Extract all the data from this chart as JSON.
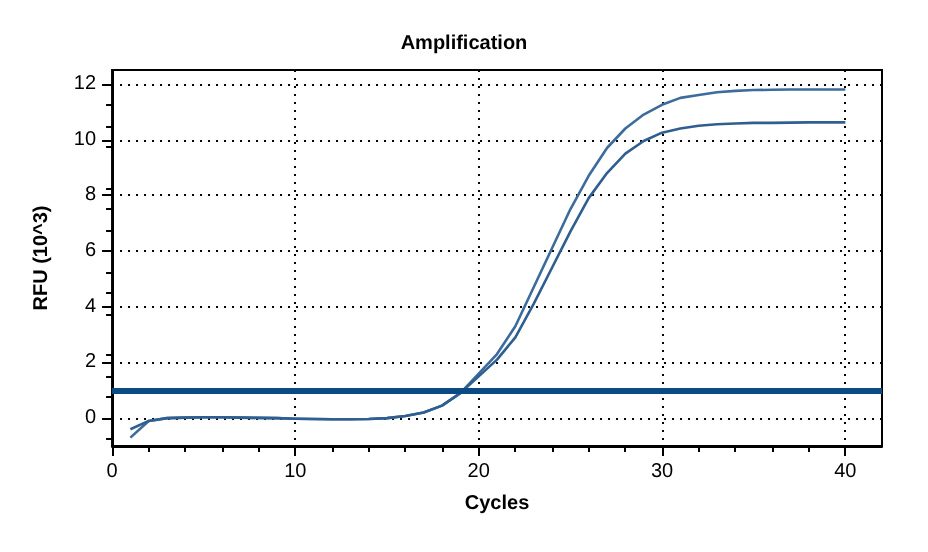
{
  "chart_data": {
    "type": "line",
    "title": "Amplification",
    "xlabel": "Cycles",
    "ylabel": "RFU (10^3)",
    "x": [
      1,
      2,
      3,
      4,
      5,
      6,
      7,
      8,
      9,
      10,
      11,
      12,
      13,
      14,
      15,
      16,
      17,
      18,
      19,
      20,
      21,
      22,
      23,
      24,
      25,
      26,
      27,
      28,
      29,
      30,
      31,
      32,
      33,
      34,
      35,
      36,
      37,
      38,
      39,
      40
    ],
    "series": [
      {
        "color": "#3d6c9c",
        "values": [
          -0.7,
          -0.1,
          0,
          0.02,
          0.03,
          0.03,
          0.02,
          0.01,
          0,
          -0.02,
          -0.03,
          -0.04,
          -0.04,
          -0.03,
          0,
          0.08,
          0.2,
          0.45,
          0.9,
          1.6,
          2.3,
          3.3,
          4.7,
          6.1,
          7.5,
          8.7,
          9.7,
          10.4,
          10.9,
          11.25,
          11.5,
          11.6,
          11.7,
          11.75,
          11.78,
          11.79,
          11.8,
          11.8,
          11.8,
          11.8
        ]
      },
      {
        "color": "#2f5f90",
        "values": [
          -0.4,
          -0.1,
          0,
          0.02,
          0.03,
          0.03,
          0.02,
          0.01,
          0,
          -0.02,
          -0.03,
          -0.04,
          -0.04,
          -0.03,
          0,
          0.08,
          0.2,
          0.45,
          0.9,
          1.5,
          2.1,
          2.9,
          4.1,
          5.4,
          6.7,
          7.9,
          8.8,
          9.5,
          9.95,
          10.25,
          10.4,
          10.5,
          10.55,
          10.58,
          10.6,
          10.6,
          10.61,
          10.62,
          10.62,
          10.62
        ]
      }
    ],
    "ref_lines": [
      {
        "axis": "y",
        "value": 1,
        "color": "#0b4a82"
      }
    ],
    "xlim": [
      0,
      42
    ],
    "ylim": [
      -1,
      12.5
    ],
    "xticks": [
      0,
      10,
      20,
      30,
      40
    ],
    "yticks": [
      0,
      2,
      4,
      6,
      8,
      10,
      12
    ],
    "grid": true,
    "marker": "none",
    "line_style": "solid"
  }
}
